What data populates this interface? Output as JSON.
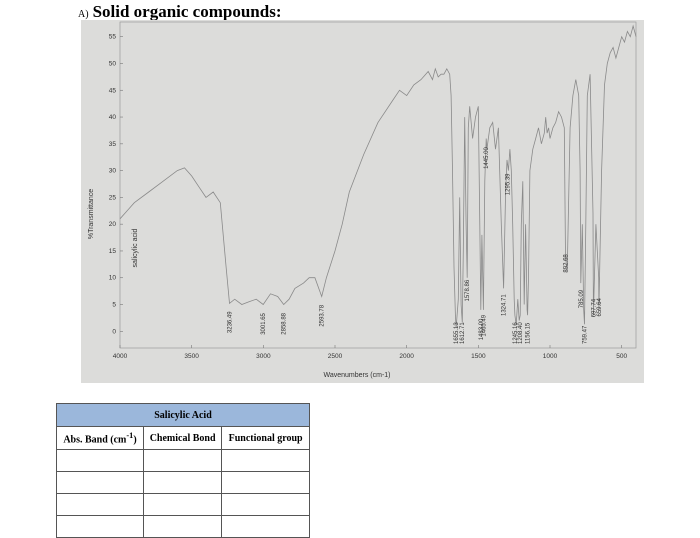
{
  "heading": {
    "prefix": "A)",
    "title": "Solid organic compounds:"
  },
  "chart_data": {
    "type": "line",
    "title": "",
    "sample_label": "salicylic acid",
    "xlabel": "Wavenumbers (cm-1)",
    "ylabel": "%Transmittance",
    "xlim": [
      4000,
      400
    ],
    "ylim": [
      -2,
      57
    ],
    "x_reversed": true,
    "x_ticks": [
      "4000",
      "3500",
      "3000",
      "2500",
      "2000",
      "1500",
      "1000",
      "500"
    ],
    "y_ticks": [
      "0",
      "5",
      "10",
      "15",
      "20",
      "25",
      "30",
      "35",
      "40",
      "45",
      "50",
      "55"
    ],
    "grid": false,
    "series": [
      {
        "x": [
          4000,
          3900,
          3800,
          3700,
          3600,
          3550,
          3500,
          3450,
          3400,
          3350,
          3300,
          3260,
          3236,
          3200,
          3150,
          3100,
          3050,
          3001,
          2950,
          2900,
          2858,
          2820,
          2780,
          2720,
          2680,
          2640,
          2600,
          2593,
          2560,
          2500,
          2450,
          2400,
          2300,
          2200,
          2100,
          2050,
          2000,
          1950,
          1900,
          1850,
          1820,
          1800,
          1780,
          1760,
          1740,
          1720,
          1700,
          1690,
          1680,
          1670,
          1660,
          1655,
          1640,
          1630,
          1620,
          1612,
          1605,
          1595,
          1585,
          1578,
          1570,
          1560,
          1540,
          1520,
          1500,
          1490,
          1483,
          1475,
          1465,
          1455,
          1445,
          1440,
          1420,
          1400,
          1380,
          1360,
          1340,
          1324,
          1310,
          1300,
          1290,
          1280,
          1270,
          1260,
          1250,
          1245,
          1236,
          1225,
          1215,
          1208,
          1200,
          1190,
          1180,
          1170,
          1160,
          1156,
          1150,
          1140,
          1120,
          1100,
          1080,
          1060,
          1040,
          1030,
          1020,
          1010,
          1000,
          980,
          960,
          940,
          920,
          900,
          892,
          880,
          860,
          840,
          820,
          800,
          790,
          785,
          775,
          765,
          759,
          750,
          740,
          720,
          700,
          697,
          680,
          660,
          659,
          640,
          620,
          600,
          580,
          560,
          540,
          520,
          500,
          480,
          460,
          440,
          420,
          410,
          400
        ],
        "y": [
          21,
          24,
          26,
          28,
          30,
          30.5,
          29,
          27,
          25,
          26,
          24,
          12,
          5.2,
          6,
          5,
          5.5,
          6,
          5,
          7,
          6.5,
          5,
          6,
          8,
          9,
          10,
          10,
          7,
          6.5,
          10,
          15,
          20,
          26,
          33,
          39,
          43,
          45,
          44,
          46,
          47,
          48.5,
          47,
          49,
          47.5,
          48,
          48,
          49,
          48,
          44,
          30,
          12,
          3,
          0.6,
          6,
          25,
          5,
          1.6,
          15,
          40,
          20,
          10,
          38,
          42,
          36,
          40,
          42,
          20,
          4,
          18,
          4,
          28,
          36,
          34,
          38,
          39,
          34,
          38,
          20,
          8,
          26,
          32,
          30,
          34,
          30,
          20,
          6,
          3,
          1.2,
          6,
          2,
          3,
          20,
          28,
          5,
          20,
          4,
          3,
          10,
          30,
          34,
          36,
          38,
          35,
          37,
          40,
          37,
          38,
          36,
          38,
          39,
          41,
          40,
          38,
          14,
          11,
          38,
          44,
          47,
          44,
          30,
          9,
          20,
          4,
          1.3,
          20,
          44,
          48,
          22,
          3,
          20,
          10,
          4,
          30,
          46,
          50,
          52,
          53,
          51,
          53,
          55,
          54,
          56,
          55,
          57,
          56,
          55
        ]
      }
    ],
    "peak_labels": [
      {
        "x": 3236.49,
        "text": "3236.49"
      },
      {
        "x": 3001.65,
        "text": "3001.65"
      },
      {
        "x": 2858.88,
        "text": "2858.88"
      },
      {
        "x": 2593.78,
        "text": "2593.78"
      },
      {
        "x": 1655.13,
        "text": "1655.13"
      },
      {
        "x": 1612.71,
        "text": "1612.71"
      },
      {
        "x": 1578.86,
        "text": "1578.86"
      },
      {
        "x": 1483.0,
        "text": "1483.00"
      },
      {
        "x": 1465.49,
        "text": "1465.49"
      },
      {
        "x": 1445.0,
        "text": "1445.00"
      },
      {
        "x": 1324.71,
        "text": "1324.71"
      },
      {
        "x": 1295.39,
        "text": "1295.39"
      },
      {
        "x": 1245.16,
        "text": "1245.16"
      },
      {
        "x": 1208.4,
        "text": "1208.40"
      },
      {
        "x": 1156.15,
        "text": "1156.15"
      },
      {
        "x": 892.68,
        "text": "892.68"
      },
      {
        "x": 785.09,
        "text": "785.09"
      },
      {
        "x": 759.47,
        "text": "759.47"
      },
      {
        "x": 697.74,
        "text": "697.74"
      },
      {
        "x": 659.64,
        "text": "659.64"
      }
    ]
  },
  "table": {
    "title": "Salicylic Acid",
    "col1": "Abs. Band (cm",
    "col1_sup": "-1",
    "col1_end": ")",
    "col2": "Chemical Bond",
    "col3": "Functional group",
    "row_count": 4
  }
}
